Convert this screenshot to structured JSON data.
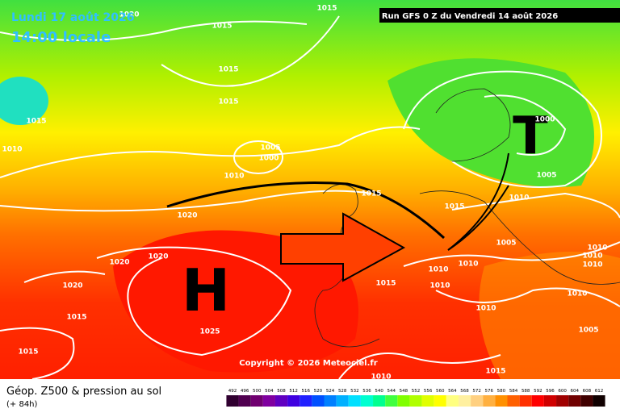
{
  "header": {
    "date": "Lundi 17 août 2026",
    "time": "14:00 locale",
    "run": "Run GFS 0 Z du Vendredi 14 août 2026"
  },
  "map": {
    "high": "H",
    "low": "T",
    "copyright": "Copyright © 2026 Meteociel.fr",
    "isobar_labels": [
      "1015",
      "1020",
      "1015",
      "1015",
      "1015",
      "1015",
      "1010",
      "1005",
      "1000",
      "1010",
      "1020",
      "1015",
      "1015",
      "1000",
      "1005",
      "1010",
      "1005",
      "1010",
      "1010",
      "1010",
      "1020",
      "1020",
      "1020",
      "1015",
      "1025",
      "1015",
      "1015",
      "1010",
      "1010",
      "1010",
      "1010",
      "1010",
      "1005",
      "1015",
      "1010"
    ]
  },
  "legend": {
    "title": "Géop. Z500 & pression au sol",
    "lead": "(+ 84h)",
    "scale": [
      492,
      496,
      500,
      504,
      508,
      512,
      516,
      520,
      524,
      528,
      532,
      536,
      540,
      544,
      548,
      552,
      556,
      560,
      564,
      568,
      572,
      576,
      580,
      584,
      588,
      592,
      596,
      600,
      604,
      608,
      612
    ],
    "colors": [
      "#300030",
      "#500050",
      "#700070",
      "#8000a0",
      "#6000c0",
      "#4000e0",
      "#2020ff",
      "#0050ff",
      "#0080ff",
      "#00b0ff",
      "#00e0ff",
      "#00ffd0",
      "#00ff90",
      "#40ff40",
      "#80ff00",
      "#b0ff00",
      "#e0ff00",
      "#ffff00",
      "#ffff80",
      "#fff0a0",
      "#ffd080",
      "#ffb040",
      "#ff9000",
      "#ff6000",
      "#ff3000",
      "#ff0000",
      "#d00000",
      "#a00000",
      "#700000",
      "#400000",
      "#100000"
    ]
  }
}
